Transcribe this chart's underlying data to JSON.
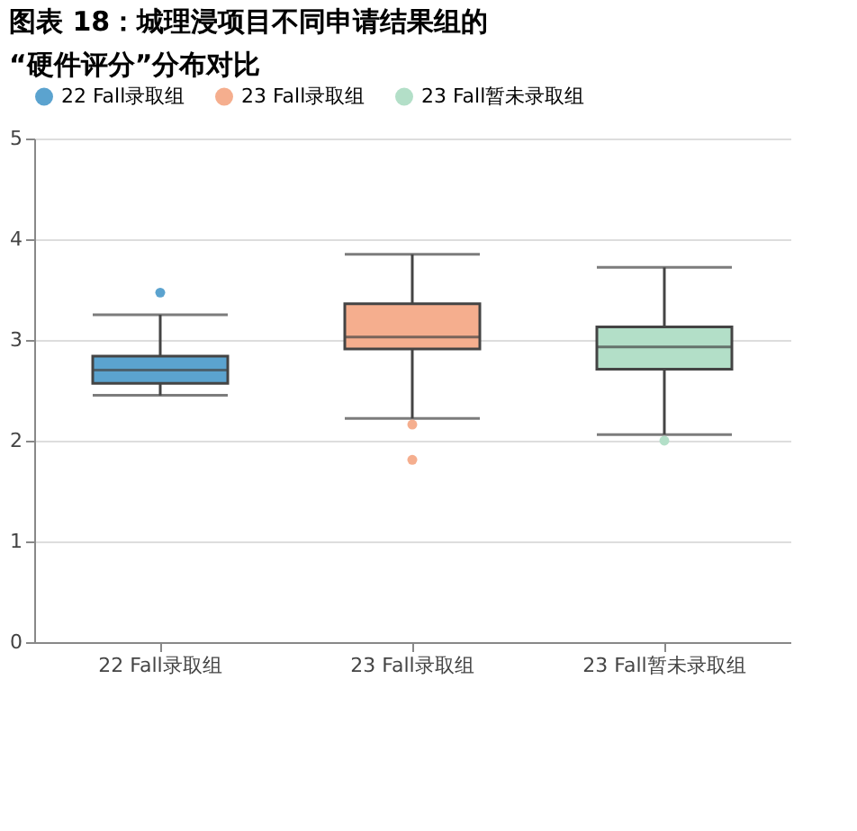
{
  "chart_data": {
    "type": "box",
    "title": "图表 18：城理浸项目不同申请结果组的\n“硬件评分”分布对比",
    "categories": [
      "22 Fall录取组",
      "23 Fall录取组",
      "23 Fall暂未录取组"
    ],
    "series": [
      {
        "name": "22 Fall录取组",
        "color": "#5ba3cf",
        "x": [
          "22 Fall录取组"
        ],
        "boxes": [
          {
            "low": 2.45,
            "q1": 2.57,
            "median": 2.7,
            "q3": 2.84,
            "high": 3.25,
            "outliers": [
              3.47
            ]
          }
        ]
      },
      {
        "name": "23 Fall录取组",
        "color": "#f5ae8e",
        "x": [
          "23 Fall录取组"
        ],
        "boxes": [
          {
            "low": 2.22,
            "q1": 2.91,
            "median": 3.03,
            "q3": 3.36,
            "high": 3.85,
            "outliers": [
              2.16,
              1.81
            ]
          }
        ]
      },
      {
        "name": "23 Fall暂未录取组",
        "color": "#b3dfc8",
        "x": [
          "23 Fall暂未录取组"
        ],
        "boxes": [
          {
            "low": 2.06,
            "q1": 2.71,
            "median": 2.93,
            "q3": 3.13,
            "high": 3.72,
            "outliers": [
              2.0
            ]
          }
        ]
      }
    ],
    "ylim": [
      0,
      5
    ],
    "yticks": [
      0,
      1,
      2,
      3,
      4,
      5
    ],
    "grid": "y",
    "legend": "top"
  }
}
